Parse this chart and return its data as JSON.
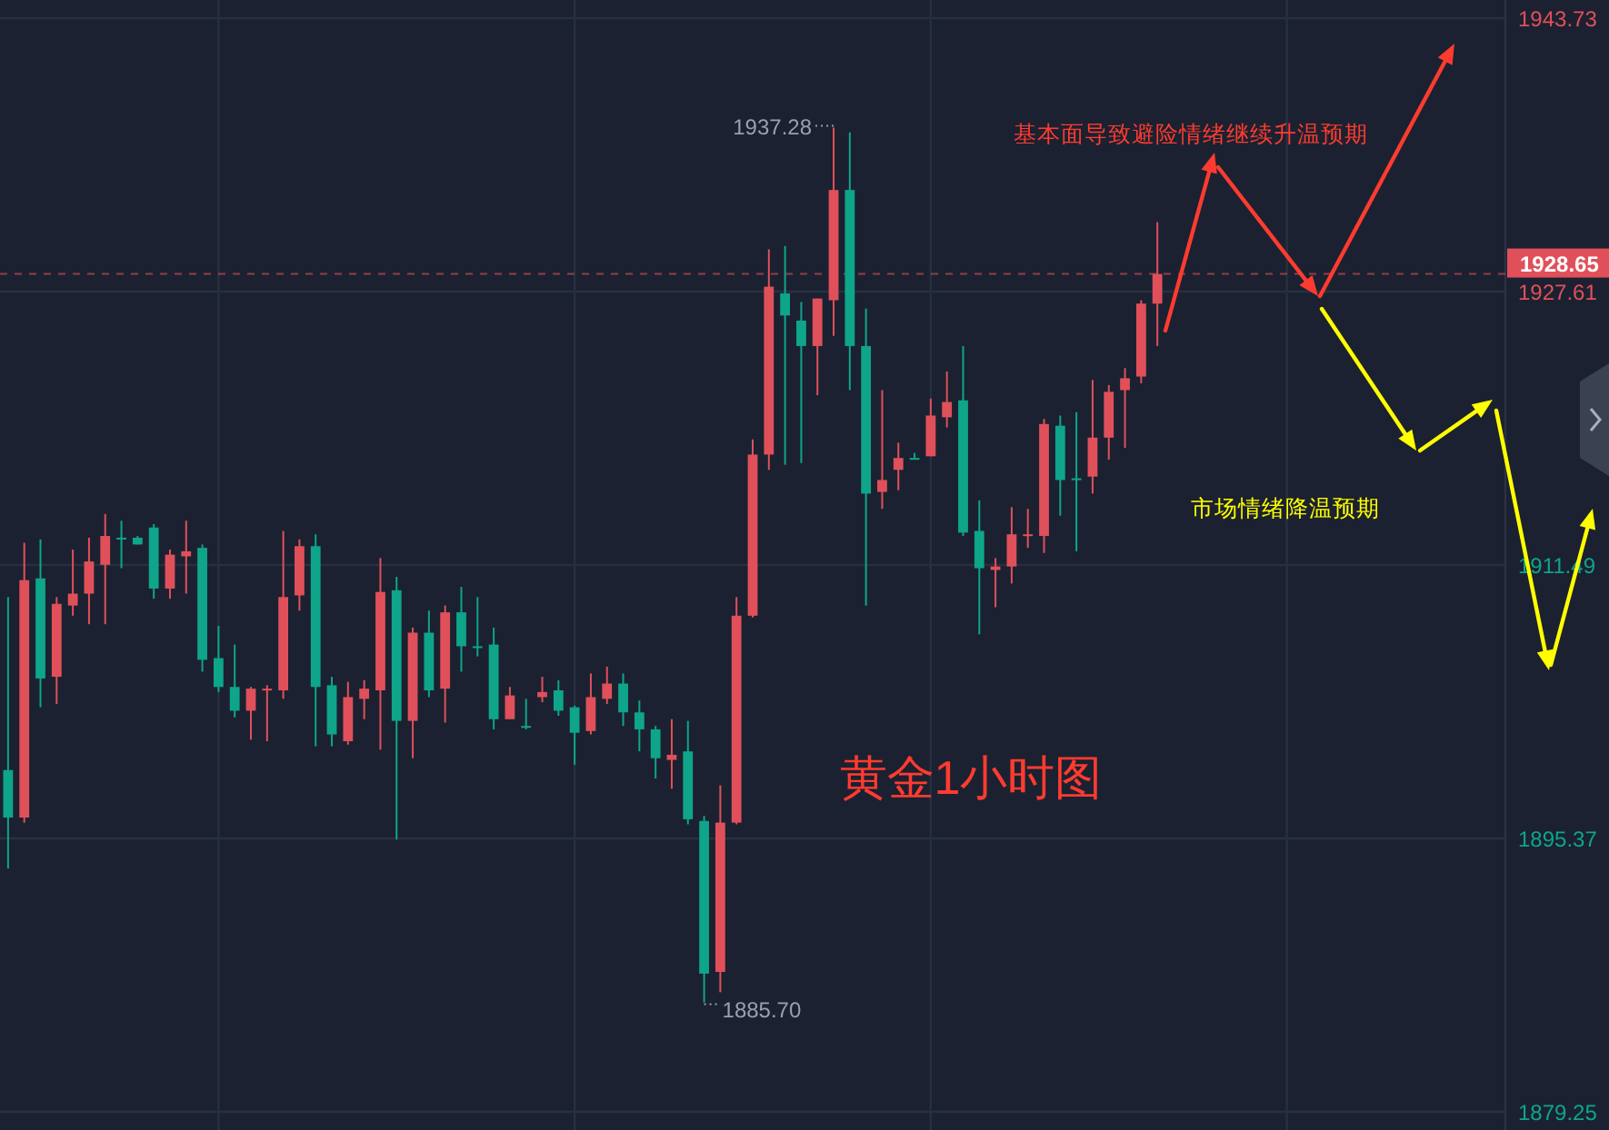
{
  "chart_data": {
    "type": "candlestick",
    "categories": [
      null,
      null,
      null,
      null,
      null,
      null,
      null,
      null,
      null,
      null,
      null,
      null,
      null,
      null,
      null,
      null,
      null,
      null,
      null,
      null,
      null,
      null,
      null,
      null,
      null,
      null,
      null,
      null,
      null,
      null,
      null,
      null,
      null,
      null,
      null,
      null,
      null,
      null,
      null,
      null,
      null,
      null,
      null,
      null,
      null,
      null,
      null,
      null,
      null,
      null,
      null,
      null,
      null,
      null,
      null,
      null,
      null,
      null,
      null,
      null,
      null,
      null,
      null,
      null,
      null,
      null,
      null,
      null,
      null,
      null,
      null,
      null,
      null,
      null,
      null,
      null,
      null,
      null,
      null,
      null,
      null,
      null,
      null,
      null,
      null,
      null,
      null,
      null,
      null,
      null,
      null,
      null,
      null
    ],
    "ohlc": [
      [
        1899.4,
        1909.6,
        1893.6,
        1896.6
      ],
      [
        1896.6,
        1912.8,
        1896.3,
        1910.6
      ],
      [
        1910.7,
        1913.0,
        1903.1,
        1904.8
      ],
      [
        1904.9,
        1909.6,
        1903.3,
        1909.2
      ],
      [
        1909.1,
        1912.4,
        1908.5,
        1909.8
      ],
      [
        1909.8,
        1913.1,
        1908.0,
        1911.7
      ],
      [
        1911.5,
        1914.5,
        1908.0,
        1913.2
      ],
      [
        1913.1,
        1914.1,
        1911.3,
        1913.0
      ],
      [
        1913.1,
        1913.2,
        1912.7,
        1912.7
      ],
      [
        1913.7,
        1913.9,
        1909.5,
        1910.1
      ],
      [
        1910.1,
        1912.4,
        1909.5,
        1912.1
      ],
      [
        1912.0,
        1914.1,
        1909.8,
        1912.3
      ],
      [
        1912.5,
        1912.7,
        1905.2,
        1905.9
      ],
      [
        1906.0,
        1907.9,
        1904.0,
        1904.3
      ],
      [
        1904.3,
        1906.8,
        1902.5,
        1902.9
      ],
      [
        1902.9,
        1904.3,
        1901.2,
        1904.2
      ],
      [
        1904.1,
        1904.4,
        1901.1,
        1904.2
      ],
      [
        1904.1,
        1913.5,
        1903.6,
        1909.6
      ],
      [
        1909.7,
        1913.0,
        1908.8,
        1912.6
      ],
      [
        1912.6,
        1913.3,
        1900.8,
        1904.3
      ],
      [
        1904.4,
        1904.9,
        1900.8,
        1901.5
      ],
      [
        1901.1,
        1904.6,
        1900.9,
        1903.7
      ],
      [
        1903.6,
        1904.7,
        1902.4,
        1904.2
      ],
      [
        1904.1,
        1911.9,
        1900.6,
        1909.9
      ],
      [
        1910.0,
        1910.8,
        1895.3,
        1902.3
      ],
      [
        1902.3,
        1907.8,
        1900.1,
        1907.5
      ],
      [
        1907.5,
        1908.8,
        1903.7,
        1904.1
      ],
      [
        1904.2,
        1909.1,
        1902.2,
        1908.7
      ],
      [
        1908.7,
        1910.2,
        1905.2,
        1906.7
      ],
      [
        1906.7,
        1909.6,
        1906.1,
        1906.6
      ],
      [
        1906.8,
        1907.8,
        1901.8,
        1902.4
      ],
      [
        1902.4,
        1904.3,
        1902.4,
        1903.8
      ],
      [
        1902.0,
        1903.6,
        1901.8,
        1901.9
      ],
      [
        1903.7,
        1904.9,
        1903.4,
        1904.0
      ],
      [
        1904.1,
        1904.7,
        1902.6,
        1902.9
      ],
      [
        1903.1,
        1903.2,
        1899.7,
        1901.6
      ],
      [
        1901.7,
        1905.1,
        1901.5,
        1903.7
      ],
      [
        1903.6,
        1905.5,
        1903.3,
        1904.5
      ],
      [
        1904.5,
        1905.1,
        1902.0,
        1902.8
      ],
      [
        1902.8,
        1903.5,
        1900.5,
        1901.8
      ],
      [
        1901.8,
        1902.0,
        1898.9,
        1900.1
      ],
      [
        1900.0,
        1902.4,
        1898.3,
        1900.3
      ],
      [
        1900.5,
        1902.3,
        1896.2,
        1896.5
      ],
      [
        1896.4,
        1896.7,
        1885.7,
        1887.4
      ],
      [
        1887.5,
        1898.5,
        1886.3,
        1896.3
      ],
      [
        1896.3,
        1909.6,
        1896.2,
        1908.5
      ],
      [
        1908.5,
        1918.9,
        1908.4,
        1918.0
      ],
      [
        1918.0,
        1930.1,
        1917.1,
        1927.9
      ],
      [
        1927.5,
        1930.3,
        1917.4,
        1926.2
      ],
      [
        1925.9,
        1927.0,
        1917.5,
        1924.4
      ],
      [
        1924.4,
        1927.2,
        1921.5,
        1927.2
      ],
      [
        1927.1,
        1937.28,
        1925.0,
        1933.6
      ],
      [
        1933.6,
        1937.0,
        1921.8,
        1924.4
      ],
      [
        1924.4,
        1926.6,
        1909.1,
        1915.7
      ],
      [
        1915.8,
        1921.8,
        1914.8,
        1916.5
      ],
      [
        1917.1,
        1918.7,
        1915.9,
        1917.8
      ],
      [
        1917.8,
        1918.1,
        1917.7,
        1917.7
      ],
      [
        1917.9,
        1921.3,
        1917.9,
        1920.3
      ],
      [
        1920.2,
        1922.9,
        1919.6,
        1921.1
      ],
      [
        1921.2,
        1924.4,
        1913.2,
        1913.4
      ],
      [
        1913.5,
        1915.3,
        1907.4,
        1911.3
      ],
      [
        1911.2,
        1911.9,
        1909.0,
        1911.4
      ],
      [
        1911.4,
        1914.9,
        1910.4,
        1913.3
      ],
      [
        1913.2,
        1914.8,
        1912.5,
        1913.3
      ],
      [
        1913.2,
        1920.1,
        1912.2,
        1919.8
      ],
      [
        1919.7,
        1920.3,
        1914.4,
        1916.5
      ],
      [
        1916.6,
        1920.5,
        1912.3,
        1916.5
      ],
      [
        1916.7,
        1922.4,
        1915.7,
        1919.0
      ],
      [
        1919.0,
        1922.1,
        1917.7,
        1921.7
      ],
      [
        1921.8,
        1923.1,
        1918.4,
        1922.5
      ],
      [
        1922.6,
        1927.1,
        1922.2,
        1926.9
      ],
      [
        1926.9,
        1931.7,
        1924.4,
        1928.65
      ],
      null,
      null,
      null,
      null,
      null,
      null,
      null,
      null,
      null,
      null,
      null,
      null,
      null,
      null,
      null,
      null,
      null,
      null,
      null,
      null,
      null
    ],
    "ylim": [
      1879.25,
      1943.73
    ],
    "yticks": [
      1879.25,
      1895.37,
      1911.49,
      1927.61,
      1943.73
    ],
    "tick_labels": "y",
    "grid": true,
    "ref_lines": [
      {
        "axis": "y",
        "value": 1928.65,
        "label": "1928.65",
        "color": "#e0505a",
        "line_style": "dashed"
      }
    ],
    "annotations": [
      "1937.28",
      "1885.70",
      "基本面导致避险情绪继续升温预期",
      "市场情绪降温预期",
      "黄金1小时图"
    ]
  }
}
